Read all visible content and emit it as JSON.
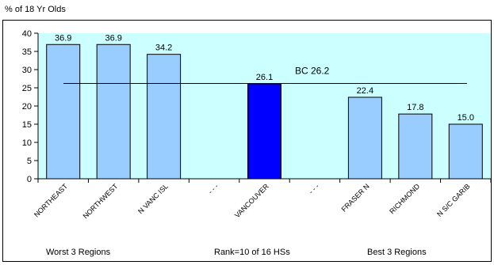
{
  "chart_data": {
    "type": "bar",
    "ylabel": "% of 18 Yr Olds",
    "ylim": [
      0,
      40
    ],
    "yticks": [
      0,
      5,
      10,
      15,
      20,
      25,
      30,
      35,
      40
    ],
    "categories": [
      "NORTHEAST",
      "NORTHWEST",
      "N VANC ISL",
      "- - -",
      "VANCOUVER",
      "- - -",
      "FRASER N",
      "RICHMOND",
      "N S/C GARIB"
    ],
    "values": [
      36.9,
      36.9,
      34.2,
      null,
      26.1,
      null,
      22.4,
      17.8,
      15.0
    ],
    "value_labels": [
      "36.9",
      "36.9",
      "34.2",
      "",
      "26.1",
      "",
      "22.4",
      "17.8",
      "15.0"
    ],
    "highlight_index": 4,
    "reference_line": {
      "value": 26.2,
      "label": "BC 26.2"
    },
    "group_labels": [
      "Worst 3 Regions",
      "Rank=10 of 16 HSs",
      "Best 3 Regions"
    ],
    "colors": {
      "plot_bg": "#ccffff",
      "bar": "#99ccff",
      "bar_highlight": "#0000ff",
      "bar_border": "#000000"
    },
    "grid": false
  }
}
